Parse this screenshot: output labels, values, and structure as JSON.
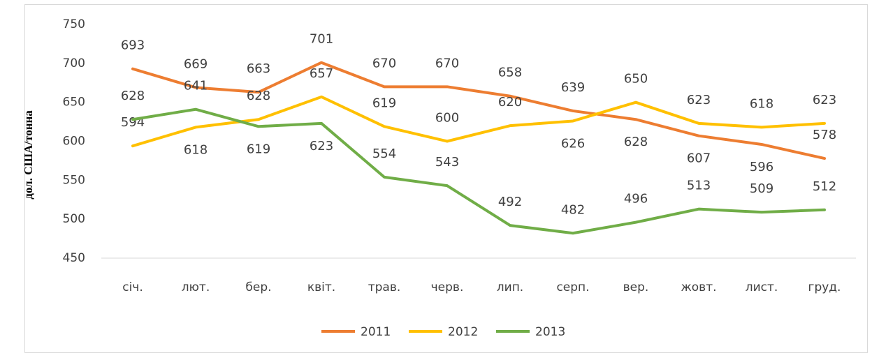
{
  "chart_data": {
    "type": "line",
    "y_axis_label": "дол. США/тонна",
    "categories": [
      "січ.",
      "лют.",
      "бер.",
      "квіт.",
      "трав.",
      "черв.",
      "лип.",
      "серп.",
      "вер.",
      "жовт.",
      "лист.",
      "груд."
    ],
    "series": [
      {
        "name": "2011",
        "color": "#ed7d31",
        "values": [
          693,
          669,
          663,
          701,
          670,
          670,
          658,
          639,
          628,
          607,
          596,
          578
        ]
      },
      {
        "name": "2012",
        "color": "#ffc000",
        "values": [
          594,
          618,
          628,
          657,
          619,
          600,
          620,
          626,
          650,
          623,
          618,
          623
        ]
      },
      {
        "name": "2013",
        "color": "#70ad47",
        "values": [
          628,
          641,
          619,
          623,
          554,
          543,
          492,
          482,
          496,
          513,
          509,
          512
        ]
      }
    ],
    "ylim": [
      450,
      750
    ],
    "yticks": [
      450,
      500,
      550,
      600,
      650,
      700,
      750
    ],
    "grid": false,
    "legend": "bottom"
  }
}
